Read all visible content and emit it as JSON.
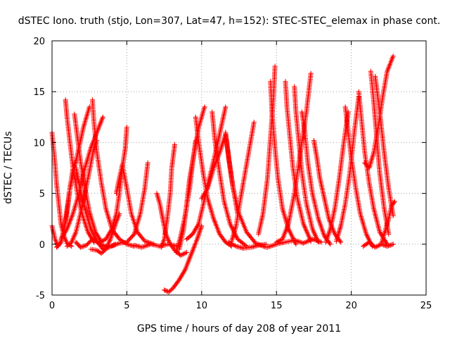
{
  "chart_data": {
    "type": "scatter",
    "title": "dSTEC Iono. truth (stjo, Lon=307, Lat=47, h=152): STEC-STEC_elemax in phase cont.",
    "xlabel": "GPS time / hours of day 208 of year 2011",
    "ylabel": "dSTEC  / TECUs",
    "xlim": [
      0,
      25
    ],
    "ylim": [
      -5,
      20
    ],
    "xticks": [
      "0",
      "5",
      "10",
      "15",
      "20",
      "25"
    ],
    "yticks": [
      "-5",
      "0",
      "5",
      "10",
      "15",
      "20"
    ],
    "grid": true,
    "marker": "plus",
    "color": "#ff0000",
    "series": [
      {
        "x": [
          0.0,
          0.1,
          0.2,
          0.3,
          0.45,
          0.6,
          0.8,
          1.0,
          1.3
        ],
        "y": [
          11,
          9.5,
          8.0,
          6.0,
          4.0,
          2.0,
          0.8,
          0.1,
          -0.2
        ]
      },
      {
        "x": [
          0.0,
          0.2,
          0.4,
          0.6,
          0.8,
          1.0,
          1.2,
          1.4,
          1.6
        ],
        "y": [
          1.8,
          0.5,
          -0.2,
          0.2,
          1.5,
          3.0,
          5.5,
          7.5,
          8.2
        ]
      },
      {
        "x": [
          0.3,
          0.6,
          0.8,
          1.0,
          1.2,
          1.5,
          1.8,
          2.1,
          2.5
        ],
        "y": [
          -0.3,
          0.2,
          1.5,
          3.5,
          5.5,
          7.5,
          9.5,
          11.5,
          13.5
        ]
      },
      {
        "x": [
          0.9,
          1.0,
          1.2,
          1.4,
          1.7,
          2.0,
          2.4,
          2.8
        ],
        "y": [
          14.2,
          12.5,
          10.0,
          7.5,
          5.0,
          3.0,
          1.2,
          0.2
        ]
      },
      {
        "x": [
          1.5,
          1.7,
          1.9,
          2.2,
          2.5,
          2.9,
          3.3
        ],
        "y": [
          12.8,
          10.5,
          8.2,
          5.5,
          3.2,
          1.2,
          0.2
        ]
      },
      {
        "x": [
          0.6,
          1.0,
          1.4,
          1.8,
          2.2,
          2.6,
          3.0,
          3.4
        ],
        "y": [
          0.5,
          1.5,
          3.0,
          5.0,
          7.5,
          9.5,
          11.0,
          12.5
        ]
      },
      {
        "x": [
          1.0,
          1.3,
          1.6,
          1.9,
          2.2,
          2.5,
          2.8,
          3.0
        ],
        "y": [
          -0.2,
          0.2,
          1.2,
          3.0,
          5.0,
          7.2,
          9.5,
          10.2
        ]
      },
      {
        "x": [
          1.6,
          1.8,
          2.0,
          2.3,
          2.6,
          3.0,
          3.4,
          3.8
        ],
        "y": [
          7.5,
          6.0,
          4.5,
          3.0,
          1.5,
          0.3,
          -0.5,
          -0.3
        ]
      },
      {
        "x": [
          2.7,
          2.8,
          3.0,
          3.3,
          3.6,
          4.0,
          4.5,
          5.0,
          5.5
        ],
        "y": [
          14.2,
          12.0,
          9.0,
          6.0,
          3.5,
          1.5,
          0.5,
          0.0,
          -0.2
        ]
      },
      {
        "x": [
          2.6,
          3.0,
          3.3,
          3.6,
          3.9,
          4.2,
          4.5
        ],
        "y": [
          -0.5,
          -0.6,
          -0.9,
          -0.5,
          0.5,
          1.8,
          3.0
        ]
      },
      {
        "x": [
          1.6,
          1.9,
          2.3,
          2.7,
          3.2,
          3.8,
          4.2
        ],
        "y": [
          0.2,
          -0.3,
          -0.1,
          0.5,
          0.0,
          -0.3,
          0.0
        ]
      },
      {
        "x": [
          3.2,
          3.6,
          4.0,
          4.3,
          4.5,
          4.7,
          4.9,
          5.0
        ],
        "y": [
          0.2,
          0.5,
          1.5,
          3.0,
          5.0,
          7.5,
          9.5,
          11.5
        ]
      },
      {
        "x": [
          4.3,
          4.5,
          4.7,
          5.0,
          5.3,
          5.7,
          6.2,
          6.8
        ],
        "y": [
          5.0,
          6.5,
          7.8,
          5.5,
          3.0,
          1.2,
          0.3,
          0.0
        ]
      },
      {
        "x": [
          4.0,
          4.5,
          5.0,
          5.5,
          5.9,
          6.2,
          6.4
        ],
        "y": [
          -0.2,
          0.1,
          0.2,
          1.0,
          3.0,
          5.5,
          8.0
        ]
      },
      {
        "x": [
          5.5,
          6.0,
          6.6,
          7.2,
          7.8,
          8.5
        ],
        "y": [
          -0.1,
          -0.3,
          0.0,
          -0.2,
          0.0,
          -0.2
        ]
      },
      {
        "x": [
          7.0,
          7.2,
          7.4,
          7.6,
          7.9,
          8.2,
          8.6,
          9.0
        ],
        "y": [
          5.0,
          4.0,
          2.5,
          1.0,
          0.0,
          -0.6,
          -1.1,
          -0.8
        ]
      },
      {
        "x": [
          7.3,
          7.5,
          7.7,
          7.9,
          8.0,
          8.2
        ],
        "y": [
          -0.3,
          0.5,
          2.5,
          5.0,
          7.5,
          9.8
        ]
      },
      {
        "x": [
          7.5,
          7.8,
          8.1,
          8.5,
          8.9,
          9.3,
          9.7,
          10.0
        ],
        "y": [
          -4.5,
          -4.7,
          -4.3,
          -3.5,
          -2.5,
          -1.0,
          0.5,
          1.8
        ]
      },
      {
        "x": [
          8.5,
          8.8,
          9.0,
          9.2,
          9.5,
          9.8,
          10.2
        ],
        "y": [
          -0.5,
          1.5,
          4.0,
          6.5,
          9.0,
          11.5,
          13.5
        ]
      },
      {
        "x": [
          8.3,
          8.6,
          8.9,
          9.2,
          9.4,
          9.6
        ],
        "y": [
          -0.8,
          0.8,
          2.8,
          5.5,
          8.0,
          10.2
        ]
      },
      {
        "x": [
          9.6,
          9.8,
          10.1,
          10.4,
          10.8,
          11.2,
          11.6,
          12.0
        ],
        "y": [
          12.5,
          10.0,
          7.0,
          4.5,
          2.5,
          1.0,
          0.2,
          -0.2
        ]
      },
      {
        "x": [
          9.0,
          9.4,
          9.8,
          10.2,
          10.6,
          11.0,
          11.3,
          11.6
        ],
        "y": [
          0.5,
          1.0,
          2.0,
          4.5,
          7.0,
          9.5,
          11.5,
          13.5
        ]
      },
      {
        "x": [
          10.0,
          10.4,
          10.8,
          11.2,
          11.6,
          12.0,
          12.4
        ],
        "y": [
          4.5,
          5.5,
          7.5,
          9.0,
          10.8,
          6.5,
          3.0
        ]
      },
      {
        "x": [
          10.7,
          10.9,
          11.2,
          11.5,
          11.9,
          12.4,
          13.0
        ],
        "y": [
          13.0,
          10.0,
          7.0,
          4.2,
          2.0,
          0.5,
          -0.2
        ]
      },
      {
        "x": [
          11.6,
          11.8,
          12.1,
          12.5,
          13.0,
          13.6,
          14.3
        ],
        "y": [
          11.0,
          8.5,
          5.5,
          3.0,
          1.2,
          0.1,
          -0.3
        ]
      },
      {
        "x": [
          12.0,
          12.3,
          12.6,
          12.9,
          13.2,
          13.5
        ],
        "y": [
          0.3,
          1.8,
          4.5,
          7.0,
          9.5,
          12.0
        ]
      },
      {
        "x": [
          11.8,
          12.3,
          12.8,
          13.3,
          13.8,
          14.3
        ],
        "y": [
          0.2,
          -0.2,
          -0.4,
          -0.3,
          -0.1,
          0.0
        ]
      },
      {
        "x": [
          13.8,
          14.1,
          14.4,
          14.6,
          14.8,
          14.9
        ],
        "y": [
          1.0,
          3.0,
          6.5,
          10.5,
          14.5,
          17.5
        ]
      },
      {
        "x": [
          14.6,
          14.7,
          14.9,
          15.1,
          15.4,
          15.8,
          16.3
        ],
        "y": [
          16.0,
          13.0,
          9.5,
          6.5,
          3.5,
          1.5,
          0.0
        ]
      },
      {
        "x": [
          15.6,
          15.7,
          15.9,
          16.1,
          16.4,
          16.8,
          17.3
        ],
        "y": [
          16.0,
          13.5,
          10.5,
          7.5,
          4.5,
          2.0,
          0.3
        ]
      },
      {
        "x": [
          16.2,
          16.3,
          16.5,
          16.7,
          17.0,
          17.4,
          17.8
        ],
        "y": [
          15.5,
          13.0,
          10.0,
          7.0,
          4.0,
          1.5,
          0.2
        ]
      },
      {
        "x": [
          15.0,
          15.4,
          15.8,
          16.2,
          16.6,
          17.0,
          17.3
        ],
        "y": [
          0.2,
          0.5,
          2.0,
          5.0,
          9.0,
          13.0,
          16.8
        ]
      },
      {
        "x": [
          16.7,
          16.9,
          17.1,
          17.4,
          17.8,
          18.2,
          18.6
        ],
        "y": [
          13.0,
          11.0,
          8.0,
          5.0,
          2.5,
          0.8,
          0.0
        ]
      },
      {
        "x": [
          17.5,
          17.7,
          17.9,
          18.2,
          18.5,
          18.9,
          19.3
        ],
        "y": [
          10.2,
          8.5,
          6.5,
          4.5,
          2.5,
          1.0,
          0.2
        ]
      },
      {
        "x": [
          14.4,
          15.0,
          15.6,
          16.2,
          16.8,
          17.4,
          18.0
        ],
        "y": [
          -0.3,
          0.0,
          0.2,
          0.4,
          0.1,
          0.5,
          0.2
        ]
      },
      {
        "x": [
          18.3,
          18.6,
          18.9,
          19.2,
          19.5,
          19.8
        ],
        "y": [
          0.2,
          1.5,
          3.5,
          6.5,
          10.0,
          13.0
        ]
      },
      {
        "x": [
          19.0,
          19.3,
          19.6,
          19.9,
          20.2,
          20.5
        ],
        "y": [
          0.3,
          1.8,
          4.0,
          7.0,
          11.0,
          14.5
        ]
      },
      {
        "x": [
          19.6,
          19.8,
          20.0,
          20.3,
          20.6,
          21.0,
          21.4
        ],
        "y": [
          13.5,
          11.0,
          8.5,
          5.5,
          3.0,
          1.0,
          -0.2
        ]
      },
      {
        "x": [
          20.5,
          20.7,
          20.9,
          21.2,
          21.5,
          21.9,
          22.4
        ],
        "y": [
          15.0,
          12.0,
          9.0,
          6.0,
          3.5,
          1.2,
          0.0
        ]
      },
      {
        "x": [
          20.9,
          21.2,
          21.5,
          21.8,
          22.1,
          22.4,
          22.8
        ],
        "y": [
          8.0,
          7.5,
          9.0,
          11.5,
          14.5,
          17.0,
          18.5
        ]
      },
      {
        "x": [
          21.3,
          21.5,
          21.7,
          21.9,
          22.2,
          22.5
        ],
        "y": [
          17.0,
          14.0,
          10.5,
          7.0,
          3.5,
          1.0
        ]
      },
      {
        "x": [
          21.6,
          21.9,
          22.2,
          22.5,
          22.8
        ],
        "y": [
          16.5,
          13.0,
          9.0,
          5.5,
          2.8
        ]
      },
      {
        "x": [
          22.0,
          22.2,
          22.5,
          22.7,
          22.9
        ],
        "y": [
          0.0,
          1.0,
          2.5,
          3.8,
          4.2
        ]
      },
      {
        "x": [
          20.8,
          21.2,
          21.6,
          22.0,
          22.4,
          22.8
        ],
        "y": [
          -0.2,
          0.2,
          -0.3,
          0.0,
          -0.2,
          0.0
        ]
      }
    ]
  }
}
